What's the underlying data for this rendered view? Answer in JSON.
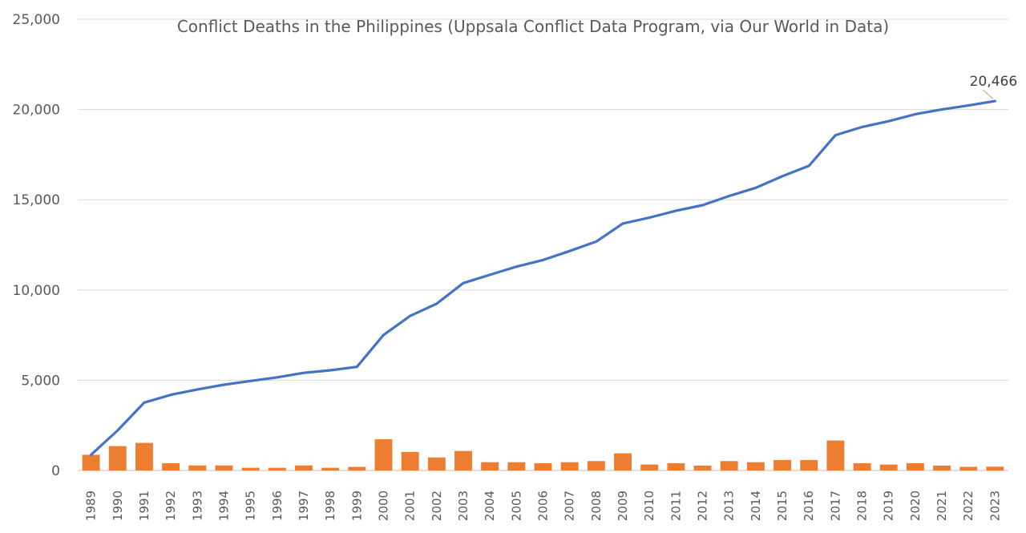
{
  "chart_data": {
    "type": "bar",
    "title": "Conflict Deaths in the Philippines (Uppsala Conflict Data Program, via Our World in Data)",
    "xlabel": "",
    "ylabel": "",
    "ylim": [
      0,
      25000
    ],
    "yticks": [
      "25,000",
      "20,000",
      "15,000",
      "10,000",
      "5,000",
      "0"
    ],
    "ytick_values": [
      25000,
      20000,
      15000,
      10000,
      5000,
      0
    ],
    "grid": true,
    "legend": "none",
    "categories": [
      "1989",
      "1990",
      "1991",
      "1992",
      "1993",
      "1994",
      "1995",
      "1996",
      "1997",
      "1998",
      "1999",
      "2000",
      "2001",
      "2002",
      "2003",
      "2004",
      "2005",
      "2006",
      "2007",
      "2008",
      "2009",
      "2010",
      "2011",
      "2012",
      "2013",
      "2014",
      "2015",
      "2016",
      "2017",
      "2018",
      "2019",
      "2020",
      "2021",
      "2022",
      "2023"
    ],
    "series": [
      {
        "kind": "bar",
        "color": "#ED7D31",
        "values": [
          870,
          1350,
          1530,
          400,
          280,
          280,
          150,
          150,
          280,
          150,
          200,
          1730,
          1030,
          720,
          1080,
          460,
          460,
          400,
          460,
          520,
          950,
          330,
          400,
          270,
          520,
          460,
          580,
          580,
          1660,
          400,
          330,
          400,
          270,
          200,
          210
        ]
      },
      {
        "kind": "line",
        "color": "#4472C4",
        "values": [
          870,
          2220,
          3760,
          4190,
          4490,
          4750,
          4960,
          5160,
          5410,
          5550,
          5740,
          7510,
          8560,
          9240,
          10380,
          10840,
          11290,
          11660,
          12160,
          12680,
          13680,
          14010,
          14390,
          14700,
          15210,
          15660,
          16300,
          16880,
          18580,
          19030,
          19350,
          19740,
          20000,
          20220,
          20466
        ]
      }
    ],
    "annotations": [
      {
        "text": "20,466",
        "category": "2023",
        "value": 20466
      }
    ]
  }
}
